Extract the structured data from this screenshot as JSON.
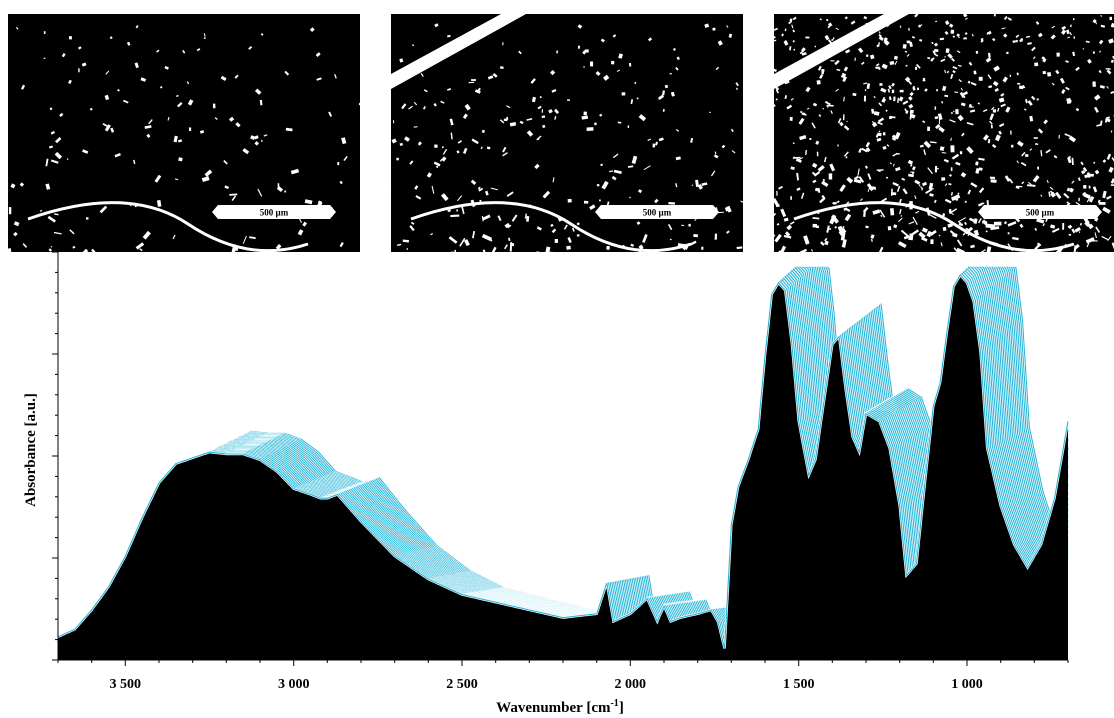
{
  "micrographs": [
    {
      "scale_label": "500 µm"
    },
    {
      "scale_label": "500 µm"
    },
    {
      "scale_label": "500 µm"
    }
  ],
  "chart_data": {
    "type": "area",
    "xlabel": "Wavenumber [cm",
    "xlabel_sup": "-1",
    "xlabel_end": "]",
    "ylabel": "Absorbance [a.u.]",
    "xlim": [
      3700,
      700
    ],
    "x_reversed": true,
    "ylim": [
      0,
      1.0
    ],
    "xticks": [
      3500,
      3000,
      2500,
      2000,
      1500,
      1000
    ],
    "xtick_labels": [
      "3 500",
      "3 000",
      "2 500",
      "2 000",
      "1 500",
      "1 000"
    ],
    "y_tick_labels_shown": false,
    "n_spectra": 26,
    "fill_color": "#000000",
    "line_color": "#29b6d8",
    "edge_color": "#ffffff",
    "base_spectrum": {
      "x": [
        3700,
        3650,
        3600,
        3550,
        3500,
        3450,
        3400,
        3350,
        3300,
        3250,
        3200,
        3150,
        3100,
        3050,
        3000,
        2950,
        2920,
        2900,
        2870,
        2850,
        2800,
        2700,
        2600,
        2500,
        2400,
        2300,
        2200,
        2100,
        2070,
        2050,
        2000,
        1950,
        1920,
        1900,
        1880,
        1850,
        1800,
        1760,
        1740,
        1720,
        1700,
        1680,
        1650,
        1620,
        1600,
        1580,
        1560,
        1540,
        1520,
        1500,
        1470,
        1450,
        1420,
        1400,
        1380,
        1360,
        1340,
        1320,
        1300,
        1260,
        1230,
        1200,
        1180,
        1150,
        1120,
        1100,
        1080,
        1060,
        1040,
        1020,
        1000,
        980,
        960,
        940,
        900,
        860,
        820,
        780,
        740,
        700
      ],
      "y": [
        0.06,
        0.08,
        0.13,
        0.19,
        0.27,
        0.37,
        0.46,
        0.51,
        0.525,
        0.54,
        0.535,
        0.535,
        0.52,
        0.49,
        0.445,
        0.43,
        0.42,
        0.42,
        0.43,
        0.41,
        0.36,
        0.27,
        0.21,
        0.17,
        0.15,
        0.13,
        0.11,
        0.12,
        0.2,
        0.1,
        0.12,
        0.16,
        0.1,
        0.14,
        0.1,
        0.11,
        0.12,
        0.13,
        0.1,
        0.03,
        0.35,
        0.45,
        0.52,
        0.6,
        0.79,
        0.95,
        0.98,
        0.96,
        0.82,
        0.62,
        0.48,
        0.52,
        0.7,
        0.82,
        0.84,
        0.7,
        0.58,
        0.54,
        0.64,
        0.62,
        0.55,
        0.4,
        0.22,
        0.25,
        0.5,
        0.66,
        0.72,
        0.85,
        0.97,
        1.0,
        0.98,
        0.93,
        0.8,
        0.55,
        0.4,
        0.3,
        0.24,
        0.3,
        0.42,
        0.62
      ]
    },
    "offset_step_cm": 5,
    "amplitude_step": 0.004
  }
}
